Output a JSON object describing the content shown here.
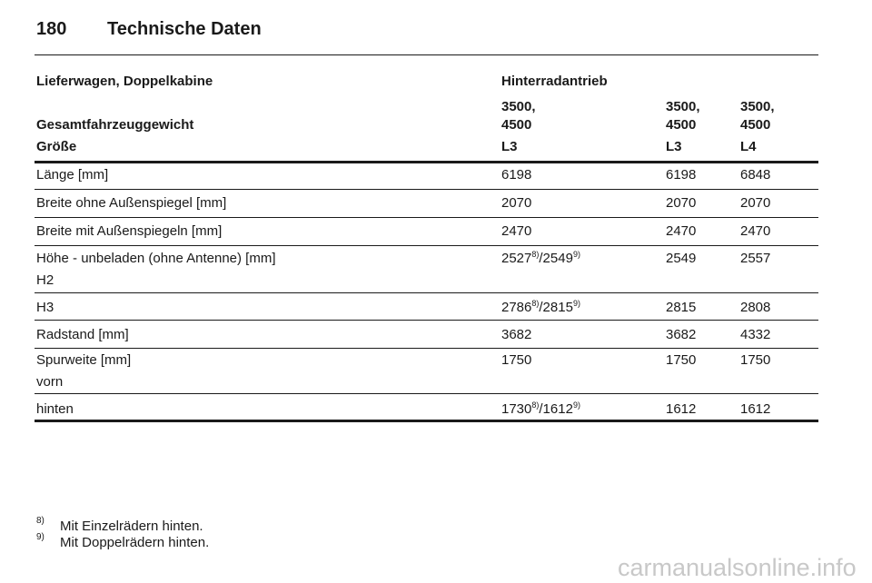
{
  "header": {
    "page_number": "180",
    "title": "Technische Daten"
  },
  "table": {
    "head_rows": [
      {
        "label": "Lieferwagen, Doppelkabine",
        "cells": [
          [
            "Hinterradantrieb"
          ]
        ]
      },
      {
        "label": "Gesamtfahrzeuggewicht",
        "cells": [
          [
            "3500,",
            "4500"
          ],
          [
            "3500,",
            "4500"
          ],
          [
            "3500,",
            "4500"
          ]
        ]
      },
      {
        "label": "Größe",
        "cells": [
          [
            "L3"
          ],
          [
            "L3"
          ],
          [
            "L4"
          ]
        ]
      }
    ],
    "rows": [
      {
        "label": [
          "Länge [mm]"
        ],
        "cells": [
          [
            "6198"
          ],
          [
            "6198"
          ],
          [
            "6848"
          ]
        ]
      },
      {
        "label": [
          "Breite ohne Außenspiegel [mm]"
        ],
        "cells": [
          [
            "2070"
          ],
          [
            "2070"
          ],
          [
            "2070"
          ]
        ]
      },
      {
        "label": [
          "Breite mit Außenspiegeln [mm]"
        ],
        "cells": [
          [
            "2470"
          ],
          [
            "2470"
          ],
          [
            "2470"
          ]
        ]
      },
      {
        "label": [
          "Höhe - unbeladen (ohne Antenne) [mm]",
          "H2"
        ],
        "cells": [
          [
            "2527",
            {
              "sup": "8)"
            },
            "/2549",
            {
              "sup": "9)"
            }
          ],
          [
            "2549"
          ],
          [
            "2557"
          ]
        ]
      },
      {
        "label": [
          "H3"
        ],
        "cells": [
          [
            "2786",
            {
              "sup": "8)"
            },
            "/2815",
            {
              "sup": "9)"
            }
          ],
          [
            "2815"
          ],
          [
            "2808"
          ]
        ]
      },
      {
        "label": [
          "Radstand [mm]"
        ],
        "cells": [
          [
            "3682"
          ],
          [
            "3682"
          ],
          [
            "4332"
          ]
        ]
      },
      {
        "label": [
          "Spurweite [mm]",
          "vorn"
        ],
        "cells": [
          [
            "1750"
          ],
          [
            "1750"
          ],
          [
            "1750"
          ]
        ]
      },
      {
        "label": [
          "hinten"
        ],
        "cells": [
          [
            "1730",
            {
              "sup": "8)"
            },
            "/1612",
            {
              "sup": "9)"
            }
          ],
          [
            "1612"
          ],
          [
            "1612"
          ]
        ]
      }
    ]
  },
  "footnotes": [
    {
      "mark": "8)",
      "text": "Mit Einzelrädern hinten."
    },
    {
      "mark": "9)",
      "text": "Mit Doppelrädern hinten."
    }
  ],
  "watermark": "carmanualsonline.info"
}
